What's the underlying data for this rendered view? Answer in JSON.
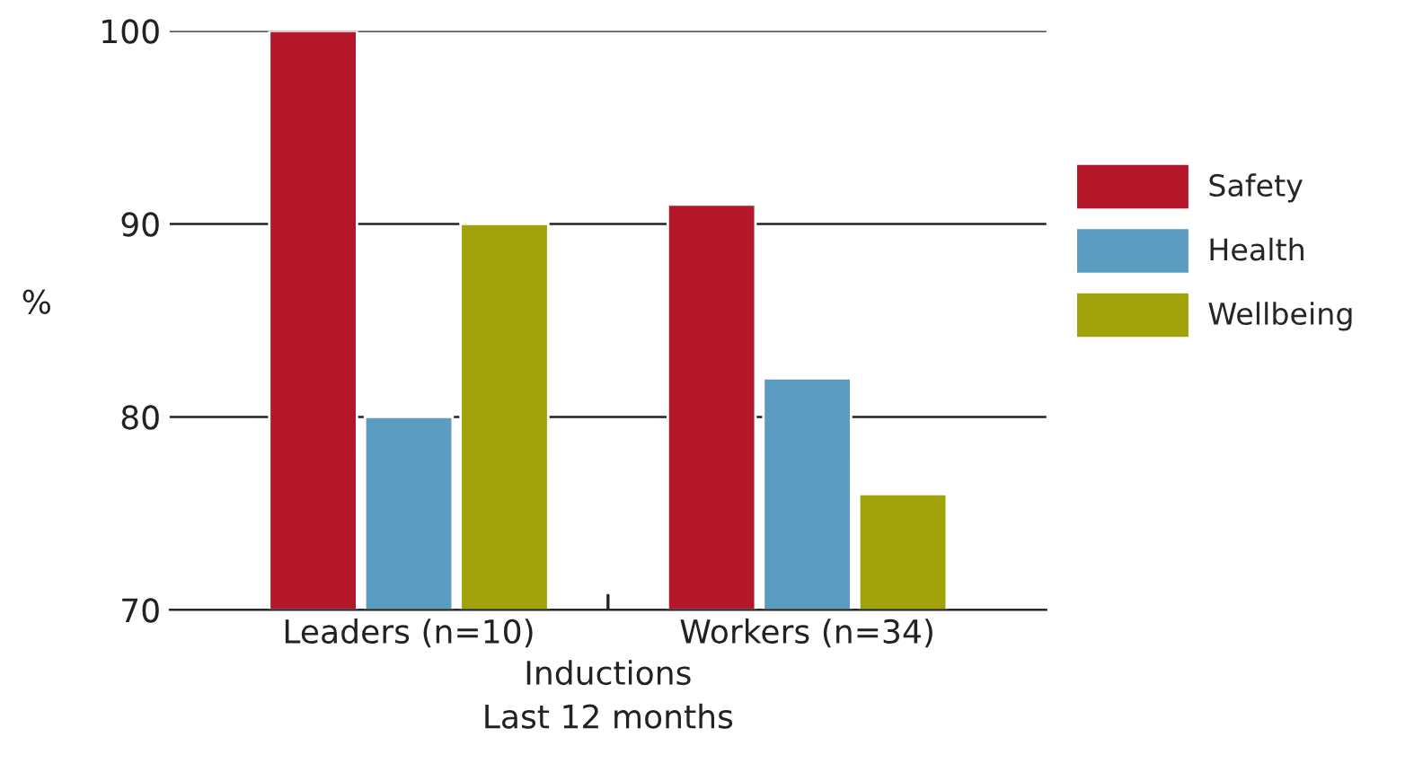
{
  "chart_data": {
    "type": "bar",
    "xlabel": "Inductions\nLast 12 months",
    "ylabel": "%",
    "categories": [
      "Leaders (n=10)",
      "Workers (n=34)"
    ],
    "series": [
      {
        "name": "Safety",
        "color": "#b5172a",
        "values": [
          100,
          91
        ]
      },
      {
        "name": "Health",
        "color": "#5a9dc0",
        "values": [
          80,
          82
        ]
      },
      {
        "name": "Wellbeing",
        "color": "#9fa309",
        "values": [
          90,
          76
        ]
      }
    ],
    "ylim": [
      70,
      100
    ],
    "yticks": [
      70,
      80,
      90,
      100
    ],
    "grid": "y",
    "legend": "right"
  }
}
